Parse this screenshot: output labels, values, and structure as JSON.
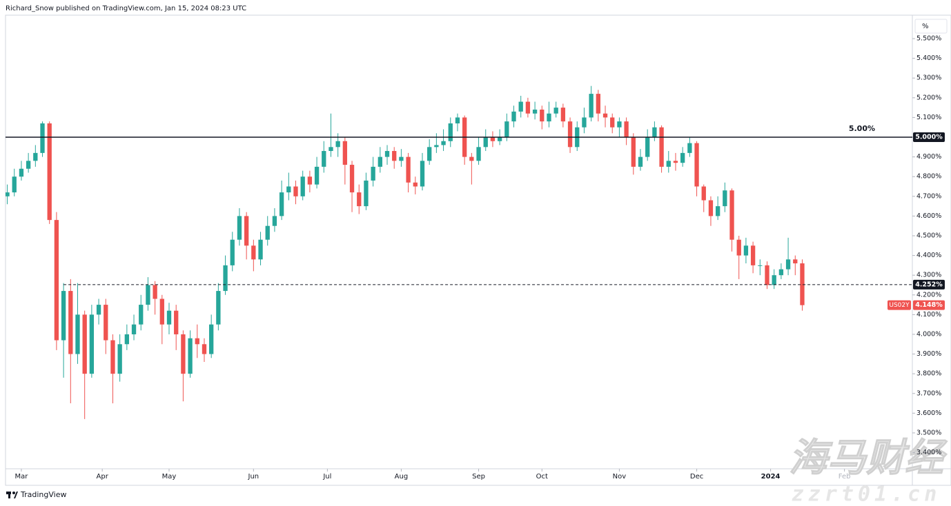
{
  "header": "Richard_Snow published on TradingView.com, Jan 15, 2024 08:23 UTC",
  "footer_logo": "TradingView",
  "watermark": [
    "海马财经",
    "zzrt01.cn"
  ],
  "chart_data": {
    "type": "candlestick",
    "axis_unit": "%",
    "colors": {
      "up": "#26a69a",
      "down": "#ef5350"
    },
    "xlim": [
      -0.5,
      257.3
    ],
    "xticks": [
      {
        "value": 4,
        "label": "Mar"
      },
      {
        "value": 27,
        "label": "Apr"
      },
      {
        "value": 46,
        "label": "May"
      },
      {
        "value": 70,
        "label": "Jun"
      },
      {
        "value": 91,
        "label": "Jul"
      },
      {
        "value": 112,
        "label": "Aug"
      },
      {
        "value": 134,
        "label": "Sep"
      },
      {
        "value": 152,
        "label": "Oct"
      },
      {
        "value": 174,
        "label": "Nov"
      },
      {
        "value": 196,
        "label": "Dec"
      },
      {
        "value": 217,
        "label": "2024"
      },
      {
        "value": 238,
        "label": "Feb"
      }
    ],
    "ylim": [
      3.318,
      5.619
    ],
    "yticks": [
      {
        "value": 3.4,
        "label": "3.400%"
      },
      {
        "value": 3.5,
        "label": "3.500%"
      },
      {
        "value": 3.6,
        "label": "3.600%"
      },
      {
        "value": 3.7,
        "label": "3.700%"
      },
      {
        "value": 3.8,
        "label": "3.800%"
      },
      {
        "value": 3.9,
        "label": "3.900%"
      },
      {
        "value": 4.0,
        "label": "4.000%"
      },
      {
        "value": 4.1,
        "label": "4.100%"
      },
      {
        "value": 4.2,
        "label": "4.200%"
      },
      {
        "value": 4.3,
        "label": "4.300%"
      },
      {
        "value": 4.4,
        "label": "4.400%"
      },
      {
        "value": 4.5,
        "label": "4.500%"
      },
      {
        "value": 4.6,
        "label": "4.600%"
      },
      {
        "value": 4.7,
        "label": "4.700%"
      },
      {
        "value": 4.8,
        "label": "4.800%"
      },
      {
        "value": 4.9,
        "label": "4.900%"
      },
      {
        "value": 5.0,
        "label": "5.000%"
      },
      {
        "value": 5.1,
        "label": "5.100%"
      },
      {
        "value": 5.2,
        "label": "5.200%"
      },
      {
        "value": 5.3,
        "label": "5.300%"
      },
      {
        "value": 5.4,
        "label": "5.400%"
      },
      {
        "value": 5.5,
        "label": "5.500%"
      }
    ],
    "x": [
      0,
      2,
      4,
      6,
      8,
      10,
      12,
      14,
      16,
      18,
      20,
      22,
      24,
      26,
      28,
      30,
      32,
      34,
      36,
      38,
      40,
      42,
      44,
      46,
      48,
      50,
      52,
      54,
      56,
      58,
      60,
      62,
      64,
      66,
      68,
      70,
      72,
      74,
      76,
      78,
      80,
      82,
      84,
      86,
      88,
      90,
      92,
      94,
      96,
      98,
      100,
      102,
      104,
      106,
      108,
      110,
      112,
      114,
      116,
      118,
      120,
      122,
      124,
      126,
      128,
      130,
      132,
      134,
      136,
      138,
      140,
      142,
      144,
      146,
      148,
      150,
      152,
      154,
      156,
      158,
      160,
      162,
      164,
      166,
      168,
      170,
      172,
      174,
      176,
      178,
      180,
      182,
      184,
      186,
      188,
      190,
      192,
      194,
      196,
      198,
      200,
      202,
      204,
      206,
      208,
      210,
      212,
      214,
      216,
      218,
      220,
      222,
      224,
      226
    ],
    "open": [
      4.7,
      4.72,
      4.8,
      4.84,
      4.88,
      4.92,
      5.07,
      4.58,
      3.97,
      4.22,
      3.9,
      4.1,
      3.8,
      4.1,
      4.15,
      3.97,
      3.8,
      3.95,
      4.0,
      4.05,
      4.15,
      4.25,
      4.18,
      4.05,
      4.12,
      4.0,
      3.8,
      3.98,
      3.95,
      3.9,
      4.05,
      4.22,
      4.35,
      4.48,
      4.6,
      4.45,
      4.38,
      4.48,
      4.55,
      4.6,
      4.72,
      4.75,
      4.7,
      4.8,
      4.76,
      4.85,
      4.93,
      4.95,
      4.98,
      4.86,
      4.72,
      4.65,
      4.78,
      4.85,
      4.9,
      4.93,
      4.88,
      4.9,
      4.77,
      4.75,
      4.88,
      4.95,
      4.96,
      4.98,
      5.07,
      5.1,
      4.9,
      4.88,
      4.95,
      5.0,
      4.98,
      5.0,
      5.08,
      5.13,
      5.18,
      5.12,
      5.14,
      5.08,
      5.12,
      5.15,
      5.08,
      4.95,
      5.05,
      5.1,
      5.22,
      5.12,
      5.1,
      5.05,
      5.08,
      5.0,
      4.85,
      4.9,
      5.0,
      5.05,
      4.85,
      4.88,
      4.87,
      4.92,
      4.97,
      4.75,
      4.68,
      4.6,
      4.65,
      4.73,
      4.48,
      4.4,
      4.45,
      4.35,
      4.35,
      4.25,
      4.3,
      4.33,
      4.38,
      4.36
    ],
    "high": [
      4.76,
      4.84,
      4.88,
      4.92,
      4.96,
      5.08,
      5.08,
      4.62,
      4.26,
      4.28,
      4.26,
      4.12,
      4.15,
      4.18,
      4.18,
      4.0,
      4.0,
      4.05,
      4.1,
      4.2,
      4.29,
      4.27,
      4.2,
      4.16,
      4.15,
      4.02,
      4.02,
      4.05,
      3.98,
      4.1,
      4.26,
      4.4,
      4.52,
      4.64,
      4.62,
      4.48,
      4.52,
      4.6,
      4.64,
      4.78,
      4.82,
      4.78,
      4.83,
      4.83,
      4.9,
      4.98,
      5.12,
      5.02,
      5.0,
      4.88,
      4.76,
      4.82,
      4.9,
      4.95,
      4.96,
      4.95,
      4.94,
      4.92,
      4.8,
      4.92,
      4.99,
      5.02,
      5.04,
      5.1,
      5.12,
      5.11,
      4.92,
      5.0,
      5.04,
      5.03,
      5.04,
      5.12,
      5.16,
      5.21,
      5.2,
      5.18,
      5.16,
      5.18,
      5.18,
      5.17,
      5.1,
      5.08,
      5.15,
      5.26,
      5.24,
      5.16,
      5.12,
      5.1,
      5.1,
      5.02,
      4.94,
      5.04,
      5.08,
      5.06,
      4.93,
      4.92,
      4.95,
      5.0,
      4.98,
      4.76,
      4.7,
      4.7,
      4.77,
      4.74,
      4.5,
      4.49,
      4.47,
      4.38,
      4.37,
      4.33,
      4.36,
      4.49,
      4.4,
      4.38
    ],
    "low": [
      4.66,
      4.7,
      4.78,
      4.82,
      4.85,
      4.9,
      4.56,
      3.92,
      3.78,
      3.65,
      3.85,
      3.57,
      3.78,
      4.05,
      3.9,
      3.65,
      3.76,
      3.92,
      3.97,
      4.02,
      4.12,
      4.1,
      3.95,
      4.0,
      3.92,
      3.66,
      3.78,
      3.88,
      3.86,
      3.88,
      4.02,
      4.2,
      4.32,
      4.45,
      4.38,
      4.32,
      4.35,
      4.45,
      4.52,
      4.58,
      4.68,
      4.66,
      4.68,
      4.72,
      4.74,
      4.82,
      4.9,
      4.9,
      4.76,
      4.62,
      4.61,
      4.63,
      4.75,
      4.82,
      4.86,
      4.84,
      4.85,
      4.72,
      4.71,
      4.73,
      4.86,
      4.92,
      4.93,
      4.95,
      5.03,
      4.86,
      4.76,
      4.86,
      4.93,
      4.95,
      4.96,
      4.98,
      5.05,
      5.1,
      5.1,
      5.09,
      5.04,
      5.05,
      5.1,
      5.05,
      4.92,
      4.93,
      5.02,
      5.08,
      5.08,
      5.05,
      5.02,
      5.0,
      4.96,
      4.81,
      4.83,
      4.88,
      4.98,
      4.82,
      4.82,
      4.83,
      4.85,
      4.9,
      4.7,
      4.62,
      4.55,
      4.58,
      4.62,
      4.42,
      4.28,
      4.36,
      4.31,
      4.3,
      4.23,
      4.23,
      4.28,
      4.3,
      4.3,
      4.12
    ],
    "close": [
      4.72,
      4.8,
      4.84,
      4.88,
      4.92,
      5.07,
      4.58,
      3.97,
      4.22,
      3.9,
      4.1,
      3.8,
      4.1,
      4.15,
      3.97,
      3.8,
      3.95,
      4.0,
      4.05,
      4.15,
      4.25,
      4.18,
      4.05,
      4.12,
      4.0,
      3.8,
      3.98,
      3.95,
      3.9,
      4.05,
      4.22,
      4.35,
      4.48,
      4.6,
      4.45,
      4.38,
      4.48,
      4.55,
      4.6,
      4.72,
      4.75,
      4.7,
      4.8,
      4.76,
      4.85,
      4.93,
      4.95,
      4.98,
      4.86,
      4.72,
      4.65,
      4.78,
      4.85,
      4.9,
      4.93,
      4.88,
      4.9,
      4.77,
      4.75,
      4.88,
      4.95,
      4.96,
      4.98,
      5.07,
      5.1,
      4.9,
      4.88,
      4.95,
      5.0,
      4.98,
      5.0,
      5.08,
      5.13,
      5.18,
      5.12,
      5.14,
      5.08,
      5.12,
      5.15,
      5.08,
      4.95,
      5.05,
      5.1,
      5.22,
      5.12,
      5.1,
      5.05,
      5.08,
      5.0,
      4.85,
      4.9,
      5.0,
      5.05,
      4.85,
      4.88,
      4.87,
      4.92,
      4.97,
      4.75,
      4.68,
      4.6,
      4.65,
      4.73,
      4.48,
      4.4,
      4.45,
      4.35,
      4.35,
      4.25,
      4.3,
      4.33,
      4.38,
      4.36,
      4.148
    ],
    "levels": [
      {
        "value": 5.0,
        "label": "5.00%",
        "tag": "5.000%",
        "style": "solid",
        "color": "#131722"
      },
      {
        "value": 4.252,
        "tag": "4.252%",
        "style": "dashed",
        "color": "#131722"
      }
    ],
    "last_price": {
      "symbol": "US02Y",
      "label": "4.148%",
      "color": "#ef5350"
    }
  }
}
